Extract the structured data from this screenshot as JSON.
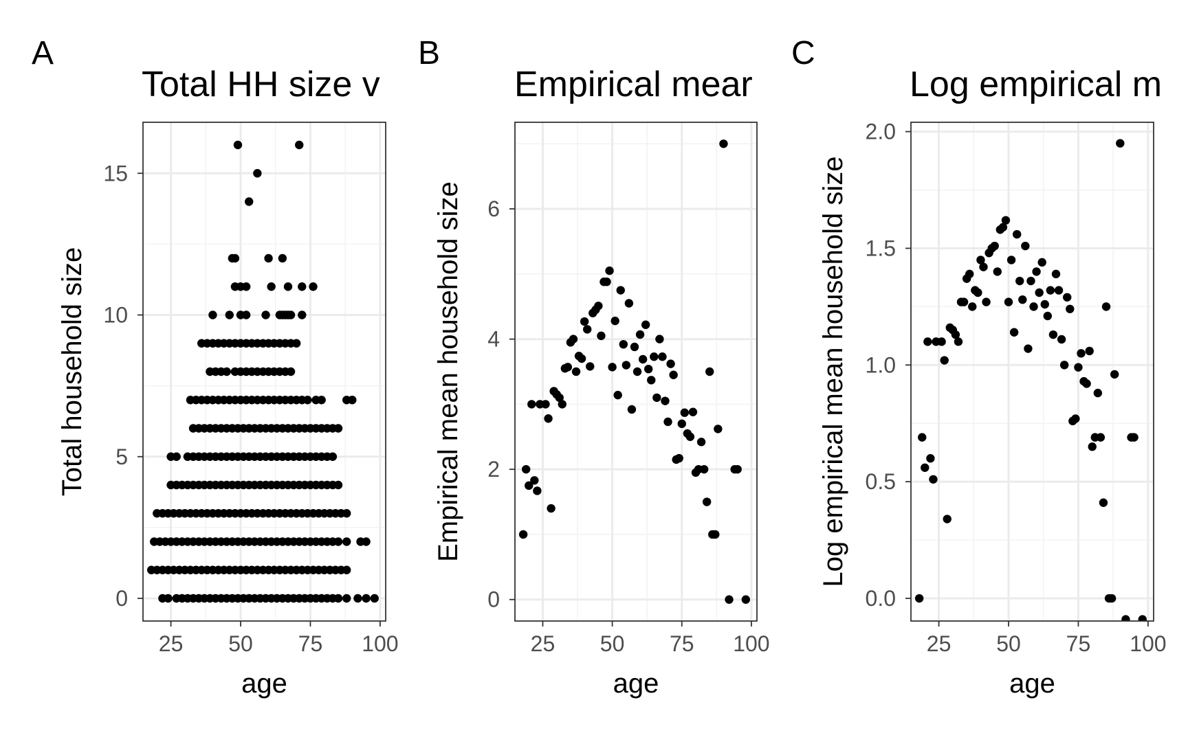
{
  "chart_data": [
    {
      "panel": "A",
      "type": "scatter",
      "title": "Total HH size v",
      "xlabel": "age",
      "ylabel": "Total household size",
      "xlim": [
        15,
        102
      ],
      "ylim": [
        -0.8,
        16.8
      ],
      "xticks": [
        25,
        50,
        75,
        100
      ],
      "yticks": [
        0,
        5,
        10,
        15
      ],
      "grid": true,
      "rows": [
        {
          "y": 0,
          "x": [
            22,
            24,
            27,
            29,
            31,
            33,
            35,
            37,
            39,
            41,
            43,
            45,
            47,
            49,
            51,
            53,
            55,
            57,
            59,
            61,
            63,
            65,
            67,
            69,
            71,
            73,
            75,
            77,
            79,
            81,
            83,
            85,
            88,
            92,
            95,
            98
          ]
        },
        {
          "y": 1,
          "x": [
            18,
            20,
            22,
            24,
            26,
            28,
            30,
            32,
            34,
            36,
            38,
            40,
            42,
            44,
            46,
            48,
            50,
            52,
            54,
            56,
            58,
            60,
            62,
            64,
            66,
            68,
            70,
            72,
            74,
            76,
            78,
            80,
            82,
            84,
            86,
            88
          ]
        },
        {
          "y": 2,
          "x": [
            19,
            21,
            23,
            25,
            27,
            29,
            31,
            33,
            35,
            37,
            39,
            41,
            43,
            45,
            47,
            49,
            51,
            53,
            55,
            57,
            59,
            61,
            63,
            65,
            67,
            69,
            71,
            73,
            75,
            77,
            79,
            81,
            83,
            85,
            88,
            93,
            95
          ]
        },
        {
          "y": 3,
          "x": [
            20,
            22,
            24,
            26,
            28,
            30,
            32,
            34,
            36,
            38,
            40,
            42,
            44,
            46,
            48,
            50,
            52,
            54,
            56,
            58,
            60,
            62,
            64,
            66,
            68,
            70,
            72,
            74,
            76,
            78,
            80,
            82,
            84,
            86,
            88
          ]
        },
        {
          "y": 4,
          "x": [
            25,
            27,
            29,
            31,
            33,
            35,
            37,
            39,
            41,
            43,
            45,
            47,
            49,
            51,
            53,
            55,
            57,
            59,
            61,
            63,
            65,
            67,
            69,
            71,
            73,
            75,
            77,
            79,
            81,
            83,
            85
          ]
        },
        {
          "y": 5,
          "x": [
            25,
            27,
            31,
            33,
            35,
            37,
            39,
            41,
            43,
            45,
            47,
            49,
            51,
            53,
            55,
            57,
            59,
            61,
            63,
            65,
            67,
            69,
            71,
            73,
            75,
            77,
            79,
            81,
            83
          ]
        },
        {
          "y": 6,
          "x": [
            33,
            35,
            37,
            39,
            41,
            43,
            45,
            47,
            49,
            51,
            53,
            55,
            57,
            59,
            61,
            63,
            65,
            67,
            69,
            71,
            73,
            75,
            77,
            79,
            81,
            83,
            85
          ]
        },
        {
          "y": 7,
          "x": [
            32,
            34,
            36,
            38,
            40,
            42,
            44,
            46,
            48,
            50,
            52,
            54,
            56,
            58,
            60,
            62,
            64,
            66,
            68,
            70,
            72,
            74,
            77,
            79,
            88,
            90
          ]
        },
        {
          "y": 8,
          "x": [
            39,
            41,
            43,
            45,
            48,
            50,
            52,
            54,
            56,
            58,
            60,
            62,
            64,
            66,
            68
          ]
        },
        {
          "y": 9,
          "x": [
            36,
            38,
            40,
            42,
            44,
            46,
            48,
            50,
            52,
            54,
            56,
            58,
            60,
            62,
            64,
            66,
            68,
            70
          ]
        },
        {
          "y": 10,
          "x": [
            40,
            46,
            50,
            52,
            59,
            64,
            65,
            66,
            67,
            68,
            72
          ]
        },
        {
          "y": 11,
          "x": [
            48,
            50,
            52,
            61,
            67,
            72,
            76
          ]
        },
        {
          "y": 12,
          "x": [
            47,
            48,
            60,
            65
          ]
        },
        {
          "y": 14,
          "x": [
            53
          ]
        },
        {
          "y": 15,
          "x": [
            56
          ]
        },
        {
          "y": 16,
          "x": [
            49,
            71
          ]
        }
      ]
    },
    {
      "panel": "B",
      "type": "scatter",
      "title": "Empirical mear",
      "xlabel": "age",
      "ylabel": "Empirical mean household size",
      "xlim": [
        15,
        102
      ],
      "ylim": [
        -0.33,
        7.33
      ],
      "xticks": [
        25,
        50,
        75,
        100
      ],
      "yticks": [
        0,
        2,
        4,
        6
      ],
      "grid": true,
      "points": [
        [
          18,
          1.0
        ],
        [
          19,
          2.0
        ],
        [
          20,
          1.75
        ],
        [
          21,
          3.0
        ],
        [
          22,
          1.83
        ],
        [
          23,
          1.67
        ],
        [
          24,
          3.0
        ],
        [
          26,
          3.0
        ],
        [
          27,
          2.78
        ],
        [
          28,
          1.4
        ],
        [
          29,
          3.2
        ],
        [
          30,
          3.15
        ],
        [
          31,
          3.1
        ],
        [
          32,
          3.0
        ],
        [
          33,
          3.55
        ],
        [
          34,
          3.57
        ],
        [
          35,
          3.95
        ],
        [
          36,
          4.0
        ],
        [
          37,
          3.5
        ],
        [
          38,
          3.74
        ],
        [
          39,
          3.7
        ],
        [
          40,
          4.27
        ],
        [
          41,
          4.15
        ],
        [
          42,
          3.58
        ],
        [
          43,
          4.4
        ],
        [
          44,
          4.45
        ],
        [
          45,
          4.51
        ],
        [
          46,
          4.05
        ],
        [
          47,
          4.88
        ],
        [
          48,
          4.88
        ],
        [
          49,
          5.05
        ],
        [
          50,
          3.57
        ],
        [
          51,
          4.28
        ],
        [
          52,
          3.14
        ],
        [
          53,
          4.75
        ],
        [
          54,
          3.92
        ],
        [
          55,
          3.6
        ],
        [
          56,
          4.55
        ],
        [
          57,
          2.92
        ],
        [
          58,
          3.88
        ],
        [
          59,
          3.5
        ],
        [
          60,
          4.07
        ],
        [
          61,
          3.69
        ],
        [
          62,
          4.22
        ],
        [
          63,
          3.54
        ],
        [
          64,
          3.37
        ],
        [
          65,
          3.73
        ],
        [
          66,
          3.1
        ],
        [
          67,
          4.0
        ],
        [
          68,
          3.73
        ],
        [
          69,
          3.05
        ],
        [
          70,
          2.73
        ],
        [
          71,
          3.62
        ],
        [
          72,
          3.45
        ],
        [
          73,
          2.15
        ],
        [
          74,
          2.17
        ],
        [
          75,
          2.7
        ],
        [
          76,
          2.87
        ],
        [
          77,
          2.55
        ],
        [
          78,
          2.5
        ],
        [
          79,
          2.88
        ],
        [
          80,
          1.95
        ],
        [
          81,
          2.0
        ],
        [
          82,
          2.42
        ],
        [
          83,
          2.0
        ],
        [
          84,
          1.5
        ],
        [
          85,
          3.5
        ],
        [
          86,
          1.0
        ],
        [
          87,
          1.0
        ],
        [
          88,
          2.62
        ],
        [
          90,
          7.0
        ],
        [
          92,
          0.0
        ],
        [
          94,
          2.0
        ],
        [
          95,
          2.0
        ],
        [
          98,
          0.0
        ]
      ]
    },
    {
      "panel": "C",
      "type": "scatter",
      "title": "Log empirical m",
      "xlabel": "age",
      "ylabel": "Log empirical mean household size",
      "xlim": [
        15,
        102
      ],
      "ylim": [
        -0.097,
        2.04
      ],
      "xticks": [
        25,
        50,
        75,
        100
      ],
      "yticks": [
        0.0,
        0.5,
        1.0,
        1.5,
        2.0
      ],
      "ytick_labels": [
        "0.0",
        "0.5",
        "1.0",
        "1.5",
        "2.0"
      ],
      "grid": true,
      "points": [
        [
          18,
          0.0
        ],
        [
          19,
          0.69
        ],
        [
          20,
          0.56
        ],
        [
          21,
          1.1
        ],
        [
          22,
          0.6
        ],
        [
          23,
          0.51
        ],
        [
          24,
          1.1
        ],
        [
          26,
          1.1
        ],
        [
          27,
          1.02
        ],
        [
          28,
          0.34
        ],
        [
          29,
          1.16
        ],
        [
          30,
          1.15
        ],
        [
          31,
          1.13
        ],
        [
          32,
          1.1
        ],
        [
          33,
          1.27
        ],
        [
          34,
          1.27
        ],
        [
          35,
          1.37
        ],
        [
          36,
          1.39
        ],
        [
          37,
          1.25
        ],
        [
          38,
          1.32
        ],
        [
          39,
          1.31
        ],
        [
          40,
          1.45
        ],
        [
          41,
          1.42
        ],
        [
          42,
          1.27
        ],
        [
          43,
          1.48
        ],
        [
          44,
          1.5
        ],
        [
          45,
          1.51
        ],
        [
          46,
          1.4
        ],
        [
          47,
          1.58
        ],
        [
          48,
          1.59
        ],
        [
          49,
          1.62
        ],
        [
          50,
          1.27
        ],
        [
          51,
          1.45
        ],
        [
          52,
          1.14
        ],
        [
          53,
          1.56
        ],
        [
          54,
          1.36
        ],
        [
          55,
          1.28
        ],
        [
          56,
          1.51
        ],
        [
          57,
          1.07
        ],
        [
          58,
          1.36
        ],
        [
          59,
          1.25
        ],
        [
          60,
          1.4
        ],
        [
          61,
          1.31
        ],
        [
          62,
          1.44
        ],
        [
          63,
          1.26
        ],
        [
          64,
          1.21
        ],
        [
          65,
          1.32
        ],
        [
          66,
          1.13
        ],
        [
          67,
          1.39
        ],
        [
          68,
          1.32
        ],
        [
          69,
          1.11
        ],
        [
          70,
          1.0
        ],
        [
          71,
          1.29
        ],
        [
          72,
          1.24
        ],
        [
          73,
          0.76
        ],
        [
          74,
          0.77
        ],
        [
          75,
          0.99
        ],
        [
          76,
          1.05
        ],
        [
          77,
          0.93
        ],
        [
          78,
          0.92
        ],
        [
          79,
          1.06
        ],
        [
          80,
          0.65
        ],
        [
          81,
          0.69
        ],
        [
          82,
          0.88
        ],
        [
          83,
          0.69
        ],
        [
          84,
          0.41
        ],
        [
          85,
          1.25
        ],
        [
          86,
          0.0
        ],
        [
          87,
          0.0
        ],
        [
          88,
          0.96
        ],
        [
          90,
          1.95
        ],
        [
          92,
          -0.09
        ],
        [
          94,
          0.69
        ],
        [
          95,
          0.69
        ],
        [
          98,
          -0.09
        ]
      ]
    }
  ]
}
